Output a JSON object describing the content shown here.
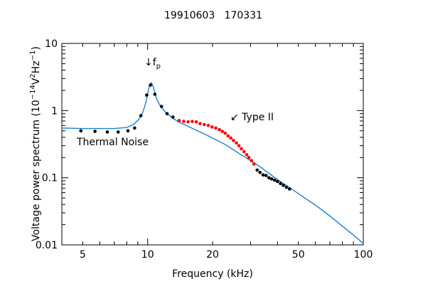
{
  "chart_data": {
    "type": "scatter",
    "title": "19910603   170331",
    "xlabel": "Frequency (kHz)",
    "ylabel": "Voltage power spectrum (10^-14 V^2 Hz^-1)",
    "ylabel_parts": {
      "prefix": "Voltage power spectrum (10",
      "exp1": "−14",
      "mid1": "V",
      "exp2": "2",
      "mid2": "Hz",
      "exp3": "−1",
      "suffix": ")"
    },
    "x_scale": "log",
    "y_scale": "log",
    "xlim": [
      4,
      100
    ],
    "ylim": [
      0.01,
      10
    ],
    "x_ticks": [
      "5",
      "10",
      "20",
      "50",
      "100"
    ],
    "y_ticks": [
      "0.01",
      "0.1",
      "1",
      "10"
    ],
    "grid": false,
    "annotations": {
      "fp_arrow": "↓",
      "fp_main": "f",
      "fp_sub": "p",
      "type2": "↙ Type II",
      "thermal": "Thermal Noise"
    },
    "colors": {
      "model": "#1a7fd0",
      "observed": "#000000",
      "type2": "#ff0000",
      "thermal_label": "#1a7fd0",
      "type2_label": "#ff0000"
    },
    "series": [
      {
        "name": "Thermal Noise",
        "kind": "line",
        "x": [
          4,
          5,
          6,
          7,
          8,
          8.6,
          9.1,
          9.5,
          9.8,
          10.0,
          10.2,
          10.4,
          10.6,
          10.8,
          11.0,
          11.4,
          12,
          13,
          14,
          16,
          18,
          20,
          23,
          26,
          30,
          33,
          36,
          40,
          45,
          50,
          60,
          70,
          80,
          90,
          100
        ],
        "y": [
          0.55,
          0.54,
          0.54,
          0.54,
          0.56,
          0.62,
          0.74,
          0.95,
          1.3,
          1.8,
          2.35,
          2.6,
          2.3,
          1.85,
          1.5,
          1.2,
          0.97,
          0.78,
          0.67,
          0.55,
          0.46,
          0.39,
          0.31,
          0.24,
          0.18,
          0.148,
          0.12,
          0.094,
          0.073,
          0.058,
          0.039,
          0.027,
          0.019,
          0.014,
          0.0105
        ]
      },
      {
        "name": "",
        "kind": "points",
        "color_key": "observed",
        "x": [
          4.9,
          5.7,
          6.5,
          7.3,
          8.1,
          8.7,
          9.3,
          9.9,
          10.3,
          10.8,
          11.6,
          12.3,
          13.1
        ],
        "y": [
          0.5,
          0.49,
          0.48,
          0.48,
          0.5,
          0.55,
          0.84,
          1.7,
          2.4,
          1.75,
          1.15,
          0.9,
          0.8
        ]
      },
      {
        "name": "",
        "kind": "points",
        "color_key": "type2",
        "x": [
          14,
          14.7,
          15.4,
          16.1,
          16.8,
          17.5,
          18.3,
          19.1,
          19.9,
          20.7,
          21.5,
          22.2,
          22.9,
          23.6,
          24.3,
          25.0,
          25.8,
          26.5,
          27.2,
          28.0,
          28.8,
          29.5,
          30.3,
          31.1
        ],
        "y": [
          0.71,
          0.69,
          0.68,
          0.69,
          0.68,
          0.64,
          0.62,
          0.6,
          0.57,
          0.55,
          0.52,
          0.49,
          0.46,
          0.42,
          0.39,
          0.36,
          0.33,
          0.3,
          0.27,
          0.245,
          0.22,
          0.2,
          0.18,
          0.16
        ]
      },
      {
        "name": "",
        "kind": "points",
        "color_key": "observed",
        "x": [
          32.2,
          33.2,
          34.3,
          35.4,
          36.5,
          37.6,
          38.8,
          40.0,
          41.3,
          42.6,
          44.0,
          45.5
        ],
        "y": [
          0.13,
          0.12,
          0.11,
          0.108,
          0.1,
          0.096,
          0.092,
          0.088,
          0.082,
          0.077,
          0.072,
          0.068
        ]
      }
    ]
  }
}
